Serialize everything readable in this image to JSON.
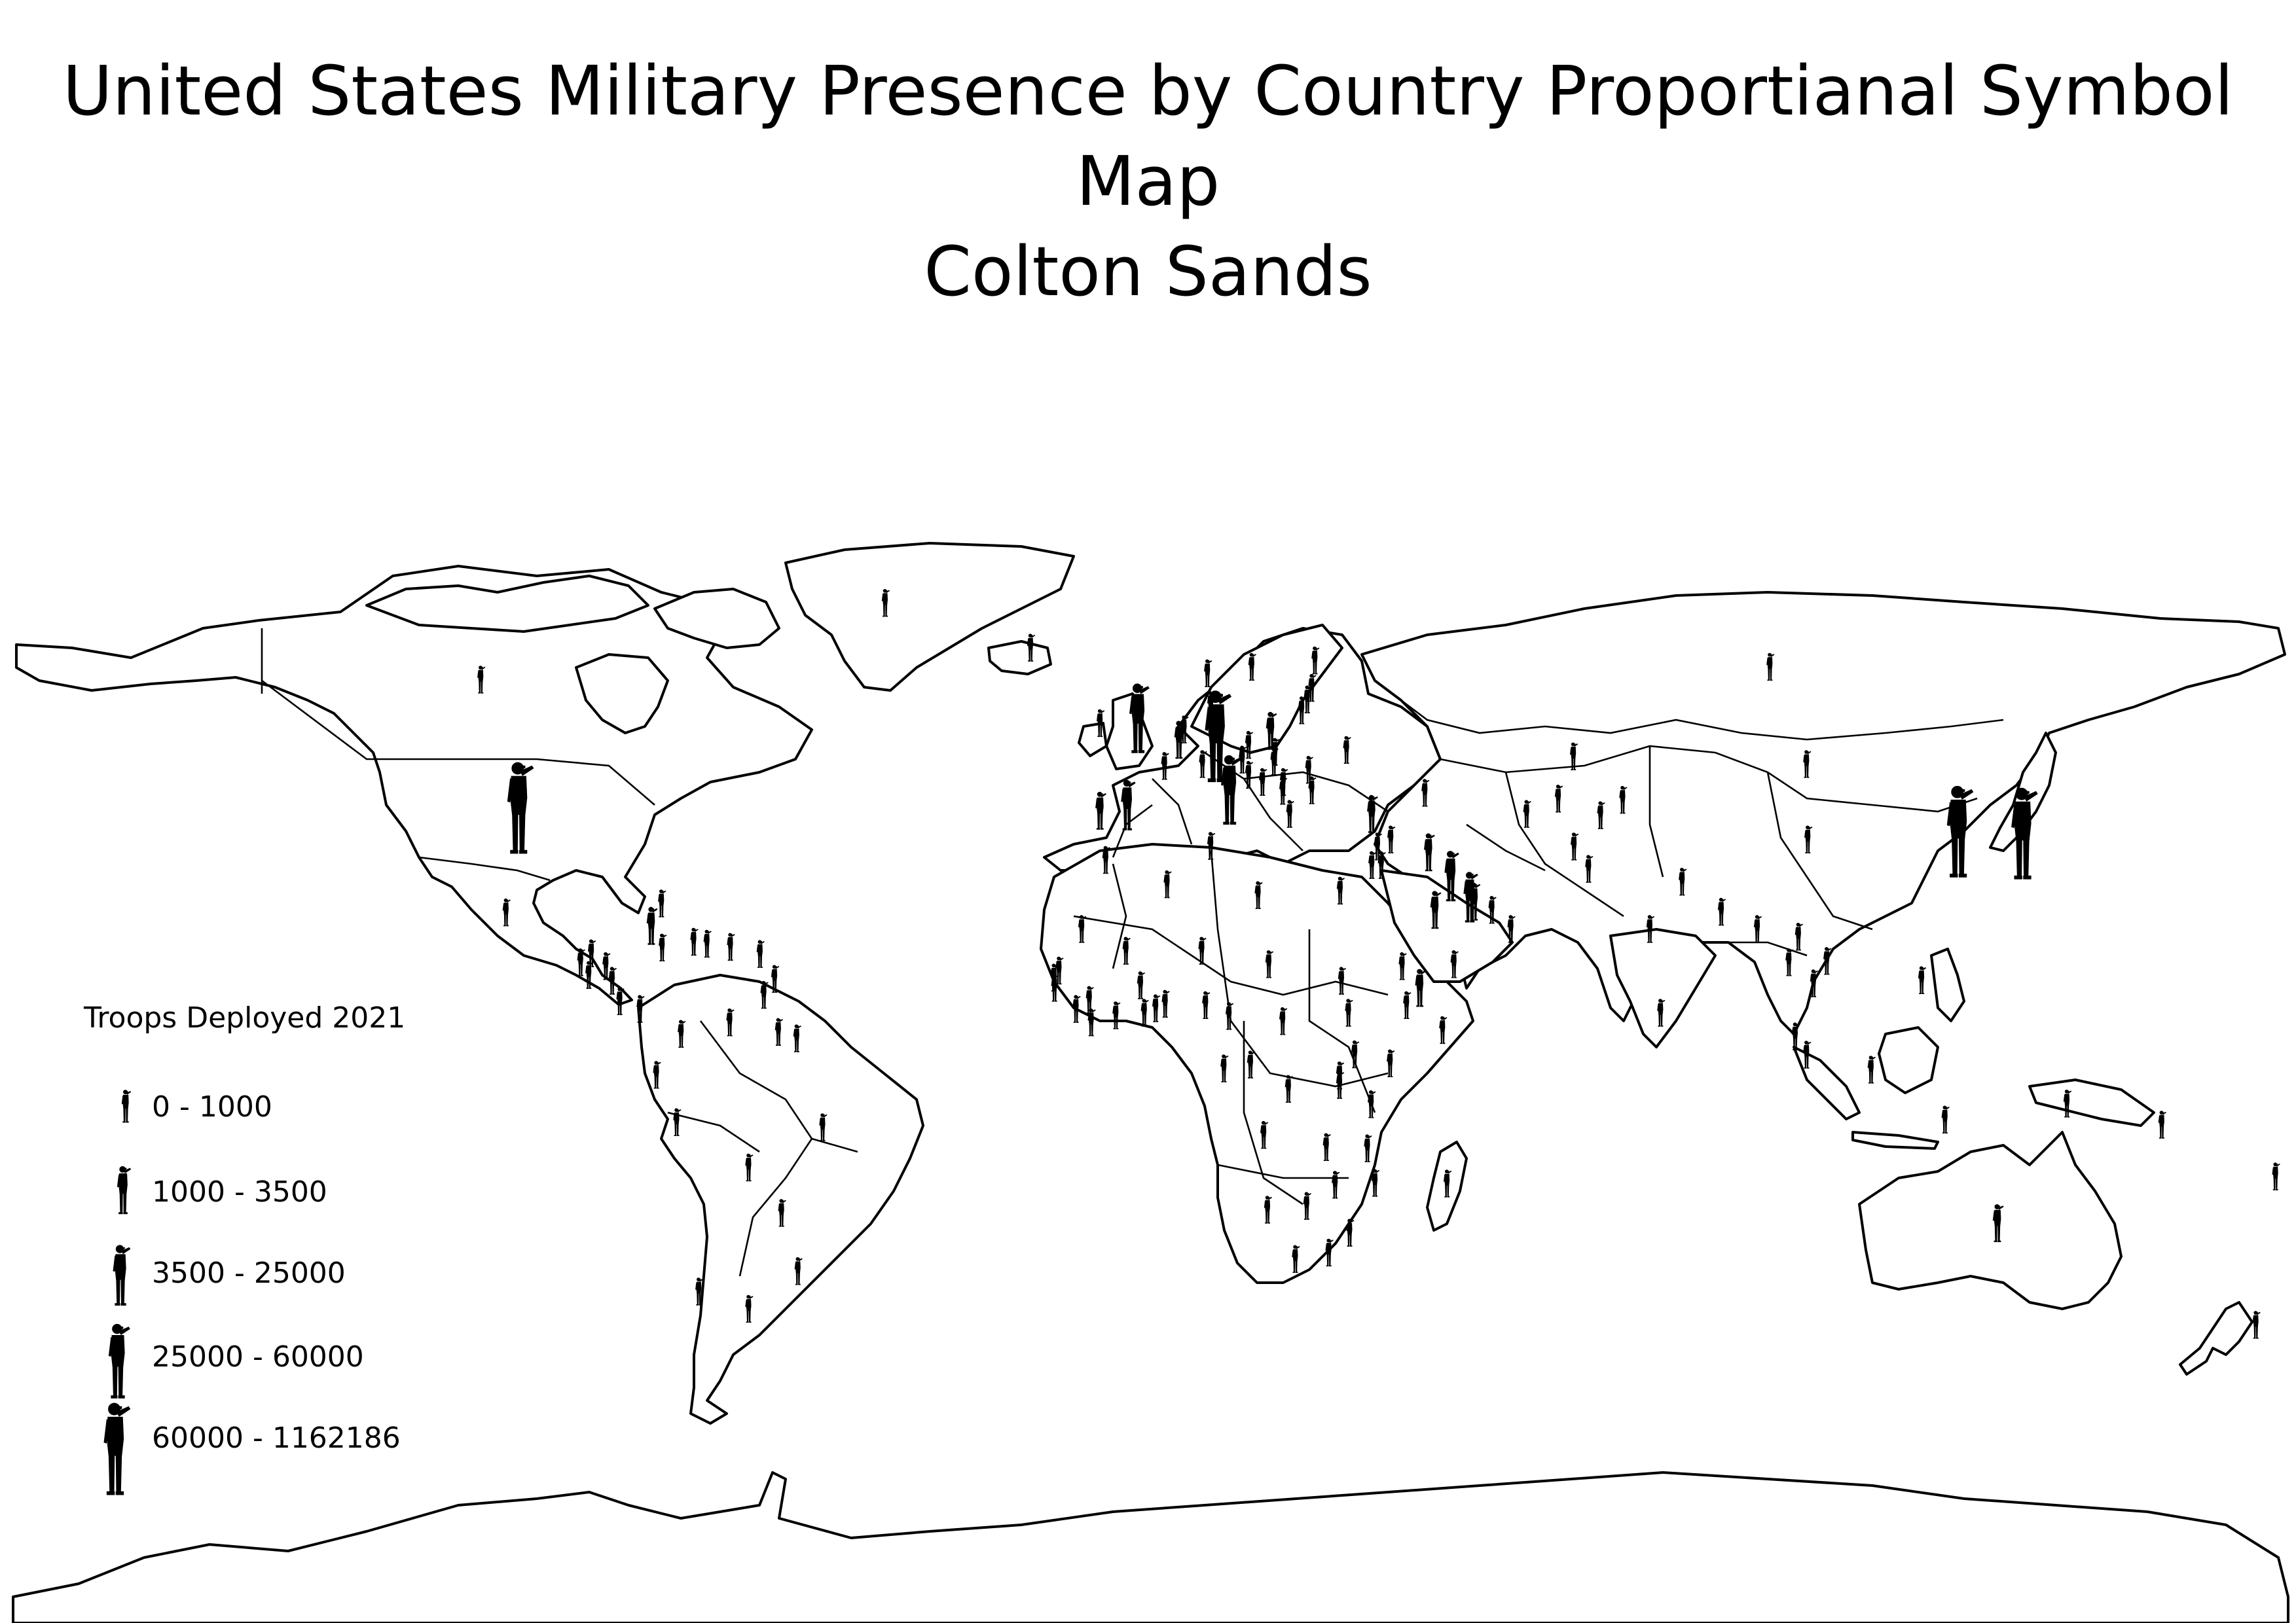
{
  "title": "United States Military Presence by Country Proportianal Symbol Map",
  "subtitle": "Colton Sands",
  "colors": {
    "land_fill": "#ffffff",
    "outline": "#000000",
    "symbol": "#000000",
    "background": "#ffffff"
  },
  "legend": {
    "title": "Troops Deployed 2021",
    "symbol_icon": "saluting-soldier-icon",
    "classes": [
      {
        "label": "0 - 1000"
      },
      {
        "label": "1000 - 3500"
      },
      {
        "label": "3500 - 25000"
      },
      {
        "label": "25000 - 60000"
      },
      {
        "label": "60000 - 1162186"
      }
    ]
  },
  "map": {
    "projection": "equirectangular",
    "symbol_meaning": "troop-count class per country",
    "symbols": [
      {
        "country": "United States",
        "lon": -100,
        "lat": 40,
        "class": 4
      },
      {
        "country": "Japan",
        "lon": 138,
        "lat": 36,
        "class": 4
      },
      {
        "country": "South Korea",
        "lon": 127.8,
        "lat": 36.3,
        "class": 4
      },
      {
        "country": "Germany",
        "lon": 10.4,
        "lat": 51.2,
        "class": 4
      },
      {
        "country": "Italy",
        "lon": 12.5,
        "lat": 42.8,
        "class": 3
      },
      {
        "country": "United Kingdom",
        "lon": -2,
        "lat": 54,
        "class": 3
      },
      {
        "country": "Spain",
        "lon": -3.7,
        "lat": 40.4,
        "class": 2
      },
      {
        "country": "Kuwait",
        "lon": 47.5,
        "lat": 29.3,
        "class": 2
      },
      {
        "country": "Bahrain",
        "lon": 50.5,
        "lat": 26,
        "class": 2
      },
      {
        "country": "Saudi Arabia",
        "lon": 45,
        "lat": 24,
        "class": 1
      },
      {
        "country": "Iraq",
        "lon": 44,
        "lat": 33,
        "class": 1
      },
      {
        "country": "Qatar",
        "lon": 51.2,
        "lat": 25.3,
        "class": 1
      },
      {
        "country": "Turkey",
        "lon": 35,
        "lat": 39,
        "class": 1
      },
      {
        "country": "Australia",
        "lon": 134,
        "lat": -25,
        "class": 1
      },
      {
        "country": "Portugal",
        "lon": -8,
        "lat": 39.5,
        "class": 1
      },
      {
        "country": "Belgium",
        "lon": 4.5,
        "lat": 50.6,
        "class": 1
      },
      {
        "country": "Poland",
        "lon": 19,
        "lat": 52,
        "class": 1
      },
      {
        "country": "Djibouti",
        "lon": 42.6,
        "lat": 11.8,
        "class": 1
      },
      {
        "country": "Cuba",
        "lon": -79,
        "lat": 21.5,
        "class": 1
      },
      {
        "country": "Greenland",
        "lon": -42,
        "lat": 72,
        "class": 0
      },
      {
        "country": "Canada",
        "lon": -106,
        "lat": 60,
        "class": 0
      },
      {
        "country": "Iceland",
        "lon": -19,
        "lat": 65,
        "class": 0
      },
      {
        "country": "Norway",
        "lon": 9,
        "lat": 61,
        "class": 0
      },
      {
        "country": "Sweden",
        "lon": 16,
        "lat": 62,
        "class": 0
      },
      {
        "country": "Finland",
        "lon": 26,
        "lat": 63,
        "class": 0
      },
      {
        "country": "Russia",
        "lon": 98,
        "lat": 62,
        "class": 0
      },
      {
        "country": "Estonia",
        "lon": 25.5,
        "lat": 58.7,
        "class": 0
      },
      {
        "country": "Latvia",
        "lon": 24.8,
        "lat": 56.9,
        "class": 0
      },
      {
        "country": "Lithuania",
        "lon": 23.9,
        "lat": 55.2,
        "class": 0
      },
      {
        "country": "Ireland",
        "lon": -8,
        "lat": 53.2,
        "class": 0
      },
      {
        "country": "Netherlands",
        "lon": 5.3,
        "lat": 52.2,
        "class": 0
      },
      {
        "country": "Denmark",
        "lon": 9.5,
        "lat": 56,
        "class": 0
      },
      {
        "country": "France",
        "lon": 2.2,
        "lat": 46.5,
        "class": 0
      },
      {
        "country": "Switzerland",
        "lon": 8.2,
        "lat": 46.8,
        "class": 0
      },
      {
        "country": "Austria",
        "lon": 14.5,
        "lat": 47.5,
        "class": 0
      },
      {
        "country": "Czechia",
        "lon": 15.5,
        "lat": 49.8,
        "class": 0
      },
      {
        "country": "Slovakia",
        "lon": 19.7,
        "lat": 48.7,
        "class": 0
      },
      {
        "country": "Hungary",
        "lon": 19.5,
        "lat": 47.2,
        "class": 0
      },
      {
        "country": "Romania",
        "lon": 25,
        "lat": 45.9,
        "class": 0
      },
      {
        "country": "Bulgaria",
        "lon": 25.5,
        "lat": 42.7,
        "class": 0
      },
      {
        "country": "Serbia",
        "lon": 21,
        "lat": 44,
        "class": 0
      },
      {
        "country": "Croatia",
        "lon": 15.5,
        "lat": 45.1,
        "class": 0
      },
      {
        "country": "Bosnia and Herzegovina",
        "lon": 17.7,
        "lat": 44,
        "class": 0
      },
      {
        "country": "Kosovo",
        "lon": 20.9,
        "lat": 42.6,
        "class": 0
      },
      {
        "country": "Greece",
        "lon": 22,
        "lat": 39,
        "class": 0
      },
      {
        "country": "Ukraine",
        "lon": 31,
        "lat": 49,
        "class": 0
      },
      {
        "country": "Georgia",
        "lon": 43.4,
        "lat": 42.3,
        "class": 0
      },
      {
        "country": "Israel",
        "lon": 35,
        "lat": 31,
        "class": 0
      },
      {
        "country": "Jordan",
        "lon": 36.5,
        "lat": 31,
        "class": 0
      },
      {
        "country": "Syria",
        "lon": 38,
        "lat": 35,
        "class": 0
      },
      {
        "country": "Lebanon",
        "lon": 35.9,
        "lat": 33.9,
        "class": 0
      },
      {
        "country": "Egypt",
        "lon": 30,
        "lat": 27,
        "class": 0
      },
      {
        "country": "United Arab Emirates",
        "lon": 54,
        "lat": 24,
        "class": 0
      },
      {
        "country": "Oman",
        "lon": 57,
        "lat": 21,
        "class": 0
      },
      {
        "country": "Yemen",
        "lon": 48,
        "lat": 15.5,
        "class": 0
      },
      {
        "country": "Afghanistan",
        "lon": 67,
        "lat": 33.9,
        "class": 0
      },
      {
        "country": "Pakistan",
        "lon": 69.3,
        "lat": 30.4,
        "class": 0
      },
      {
        "country": "Kazakhstan",
        "lon": 66.9,
        "lat": 48,
        "class": 0
      },
      {
        "country": "Kyrgyzstan",
        "lon": 74.7,
        "lat": 41.2,
        "class": 0
      },
      {
        "country": "Uzbekistan",
        "lon": 64.5,
        "lat": 41.4,
        "class": 0
      },
      {
        "country": "Turkmenistan",
        "lon": 59.5,
        "lat": 39,
        "class": 0
      },
      {
        "country": "Tajikistan",
        "lon": 71.2,
        "lat": 38.8,
        "class": 0
      },
      {
        "country": "Mongolia",
        "lon": 103.8,
        "lat": 46.8,
        "class": 0
      },
      {
        "country": "China",
        "lon": 104,
        "lat": 35,
        "class": 0
      },
      {
        "country": "India",
        "lon": 79,
        "lat": 21,
        "class": 0
      },
      {
        "country": "Nepal",
        "lon": 84.1,
        "lat": 28.4,
        "class": 0
      },
      {
        "country": "Bangladesh",
        "lon": 90.3,
        "lat": 23.7,
        "class": 0
      },
      {
        "country": "Sri Lanka",
        "lon": 80.7,
        "lat": 7.9,
        "class": 0
      },
      {
        "country": "Myanmar",
        "lon": 96,
        "lat": 21,
        "class": 0
      },
      {
        "country": "Thailand",
        "lon": 101,
        "lat": 15.8,
        "class": 0
      },
      {
        "country": "Laos",
        "lon": 102.5,
        "lat": 19.8,
        "class": 0
      },
      {
        "country": "Vietnam",
        "lon": 107,
        "lat": 16,
        "class": 0
      },
      {
        "country": "Cambodia",
        "lon": 104.9,
        "lat": 12.5,
        "class": 0
      },
      {
        "country": "Malaysia",
        "lon": 102,
        "lat": 4.2,
        "class": 0
      },
      {
        "country": "Singapore",
        "lon": 103.8,
        "lat": 1.35,
        "class": 0
      },
      {
        "country": "Indonesia",
        "lon": 114,
        "lat": -1,
        "class": 0
      },
      {
        "country": "Philippines",
        "lon": 122,
        "lat": 13,
        "class": 0
      },
      {
        "country": "Timor-Leste",
        "lon": 125.7,
        "lat": -8.8,
        "class": 0
      },
      {
        "country": "Papua New Guinea",
        "lon": 145,
        "lat": -6.3,
        "class": 0
      },
      {
        "country": "Solomon Islands",
        "lon": 160,
        "lat": -9.6,
        "class": 0
      },
      {
        "country": "Fiji",
        "lon": 178,
        "lat": -17.7,
        "class": 0
      },
      {
        "country": "New Zealand",
        "lon": 174.9,
        "lat": -40.9,
        "class": 0
      },
      {
        "country": "Mexico",
        "lon": -102,
        "lat": 23.6,
        "class": 0
      },
      {
        "country": "Guatemala",
        "lon": -90.2,
        "lat": 15.8,
        "class": 0
      },
      {
        "country": "Belize",
        "lon": -88.5,
        "lat": 17.2,
        "class": 0
      },
      {
        "country": "Honduras",
        "lon": -86.2,
        "lat": 15.2,
        "class": 0
      },
      {
        "country": "El Salvador",
        "lon": -88.9,
        "lat": 13.8,
        "class": 0
      },
      {
        "country": "Nicaragua",
        "lon": -85.2,
        "lat": 12.9,
        "class": 0
      },
      {
        "country": "Costa Rica",
        "lon": -84,
        "lat": 9.7,
        "class": 0
      },
      {
        "country": "Panama",
        "lon": -80.8,
        "lat": 8.5,
        "class": 0
      },
      {
        "country": "Bahamas",
        "lon": -77.4,
        "lat": 25,
        "class": 0
      },
      {
        "country": "Jamaica",
        "lon": -77.3,
        "lat": 18.1,
        "class": 0
      },
      {
        "country": "Haiti",
        "lon": -72.3,
        "lat": 19,
        "class": 0
      },
      {
        "country": "Dominican Republic",
        "lon": -70.2,
        "lat": 18.7,
        "class": 0
      },
      {
        "country": "Puerto Rico",
        "lon": -66.5,
        "lat": 18.2,
        "class": 0
      },
      {
        "country": "Antigua and Barbuda",
        "lon": -61.8,
        "lat": 17.1,
        "class": 0
      },
      {
        "country": "Barbados",
        "lon": -59.5,
        "lat": 13.2,
        "class": 0
      },
      {
        "country": "Trinidad and Tobago",
        "lon": -61.2,
        "lat": 10.7,
        "class": 0
      },
      {
        "country": "Colombia",
        "lon": -74.3,
        "lat": 4.6,
        "class": 0
      },
      {
        "country": "Venezuela",
        "lon": -66.6,
        "lat": 6.4,
        "class": 0
      },
      {
        "country": "Guyana",
        "lon": -58.9,
        "lat": 4.9,
        "class": 0
      },
      {
        "country": "Suriname",
        "lon": -56,
        "lat": 3.9,
        "class": 0
      },
      {
        "country": "Ecuador",
        "lon": -78.2,
        "lat": -1.8,
        "class": 0
      },
      {
        "country": "Peru",
        "lon": -75,
        "lat": -9.2,
        "class": 0
      },
      {
        "country": "Brazil",
        "lon": -51.9,
        "lat": -10,
        "class": 0
      },
      {
        "country": "Bolivia",
        "lon": -63.6,
        "lat": -16.3,
        "class": 0
      },
      {
        "country": "Paraguay",
        "lon": -58.4,
        "lat": -23.4,
        "class": 0
      },
      {
        "country": "Chile",
        "lon": -71.5,
        "lat": -35.7,
        "class": 0
      },
      {
        "country": "Argentina",
        "lon": -63.6,
        "lat": -38.4,
        "class": 0
      },
      {
        "country": "Uruguay",
        "lon": -55.8,
        "lat": -32.5,
        "class": 0
      },
      {
        "country": "Morocco",
        "lon": -7.1,
        "lat": 31.8,
        "class": 0
      },
      {
        "country": "Algeria",
        "lon": 2.6,
        "lat": 28,
        "class": 0
      },
      {
        "country": "Tunisia",
        "lon": 9.5,
        "lat": 34,
        "class": 0
      },
      {
        "country": "Libya",
        "lon": 17,
        "lat": 26.3,
        "class": 0
      },
      {
        "country": "Mauritania",
        "lon": -10.9,
        "lat": 21,
        "class": 0
      },
      {
        "country": "Mali",
        "lon": -3.9,
        "lat": 17.6,
        "class": 0
      },
      {
        "country": "Niger",
        "lon": 8.1,
        "lat": 17.6,
        "class": 0
      },
      {
        "country": "Chad",
        "lon": 18.7,
        "lat": 15.5,
        "class": 0
      },
      {
        "country": "Sudan",
        "lon": 30.2,
        "lat": 12.9,
        "class": 0
      },
      {
        "country": "Eritrea",
        "lon": 39.8,
        "lat": 15.2,
        "class": 0
      },
      {
        "country": "Ethiopia",
        "lon": 40.5,
        "lat": 9.1,
        "class": 0
      },
      {
        "country": "Somalia",
        "lon": 46.2,
        "lat": 5.2,
        "class": 0
      },
      {
        "country": "Senegal",
        "lon": -14.5,
        "lat": 14.5,
        "class": 0
      },
      {
        "country": "Gambia",
        "lon": -15.3,
        "lat": 13.4,
        "class": 0
      },
      {
        "country": "Guinea-Bissau",
        "lon": -15.2,
        "lat": 11.8,
        "class": 0
      },
      {
        "country": "Guinea",
        "lon": -9.7,
        "lat": 9.9,
        "class": 0
      },
      {
        "country": "Sierra Leone",
        "lon": -11.8,
        "lat": 8.5,
        "class": 0
      },
      {
        "country": "Liberia",
        "lon": -9.4,
        "lat": 6.4,
        "class": 0
      },
      {
        "country": "Ivory Coast",
        "lon": -5.5,
        "lat": 7.5,
        "class": 0
      },
      {
        "country": "Burkina Faso",
        "lon": -1.6,
        "lat": 12.2,
        "class": 0
      },
      {
        "country": "Ghana",
        "lon": -1,
        "lat": 7.9,
        "class": 0
      },
      {
        "country": "Togo",
        "lon": 0.8,
        "lat": 8.6,
        "class": 0
      },
      {
        "country": "Benin",
        "lon": 2.3,
        "lat": 9.3,
        "class": 0
      },
      {
        "country": "Nigeria",
        "lon": 8.7,
        "lat": 9.1,
        "class": 0
      },
      {
        "country": "Cameroon",
        "lon": 12.4,
        "lat": 7.4,
        "class": 0
      },
      {
        "country": "Central African Republic",
        "lon": 20.9,
        "lat": 6.6,
        "class": 0
      },
      {
        "country": "South Sudan",
        "lon": 31.3,
        "lat": 7.9,
        "class": 0
      },
      {
        "country": "Gabon",
        "lon": 11.6,
        "lat": -0.8,
        "class": 0
      },
      {
        "country": "Republic of the Congo",
        "lon": 15.8,
        "lat": -0.2,
        "class": 0
      },
      {
        "country": "DR Congo",
        "lon": 21.8,
        "lat": -4,
        "class": 0
      },
      {
        "country": "Uganda",
        "lon": 32.3,
        "lat": 1.4,
        "class": 0
      },
      {
        "country": "Kenya",
        "lon": 37.9,
        "lat": 0,
        "class": 0
      },
      {
        "country": "Rwanda",
        "lon": 29.9,
        "lat": -1.9,
        "class": 0
      },
      {
        "country": "Burundi",
        "lon": 29.9,
        "lat": -3.4,
        "class": 0
      },
      {
        "country": "Tanzania",
        "lon": 34.9,
        "lat": -6.4,
        "class": 0
      },
      {
        "country": "Angola",
        "lon": 17.9,
        "lat": -11.2,
        "class": 0
      },
      {
        "country": "Zambia",
        "lon": 27.8,
        "lat": -13.1,
        "class": 0
      },
      {
        "country": "Malawi",
        "lon": 34.3,
        "lat": -13.3,
        "class": 0
      },
      {
        "country": "Mozambique",
        "lon": 35.5,
        "lat": -18.7,
        "class": 0
      },
      {
        "country": "Zimbabwe",
        "lon": 29.2,
        "lat": -19,
        "class": 0
      },
      {
        "country": "Namibia",
        "lon": 18.5,
        "lat": -22.9,
        "class": 0
      },
      {
        "country": "Botswana",
        "lon": 24.7,
        "lat": -22.3,
        "class": 0
      },
      {
        "country": "South Africa",
        "lon": 22.9,
        "lat": -30.6,
        "class": 0
      },
      {
        "country": "Lesotho",
        "lon": 28.2,
        "lat": -29.6,
        "class": 0
      },
      {
        "country": "Eswatini",
        "lon": 31.5,
        "lat": -26.5,
        "class": 0
      },
      {
        "country": "Madagascar",
        "lon": 46.9,
        "lat": -18.8,
        "class": 0
      }
    ]
  }
}
